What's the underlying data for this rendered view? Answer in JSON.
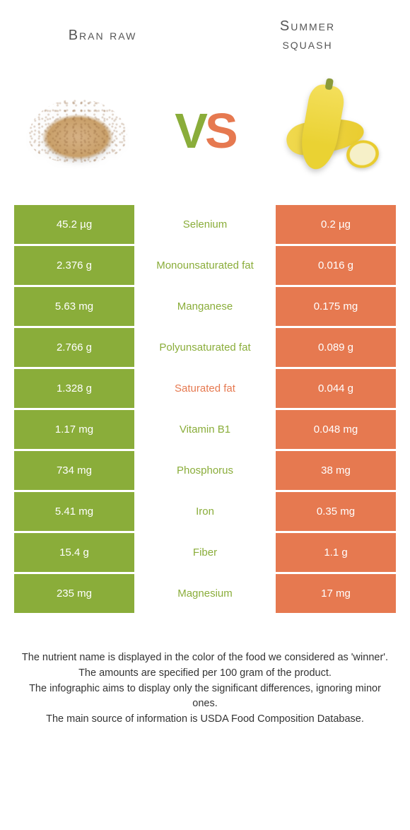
{
  "colors": {
    "left": "#8aad3a",
    "right": "#e67950",
    "vs_v": "#8aad3a",
    "vs_s": "#e67950",
    "background": "#ffffff"
  },
  "header": {
    "left_title": "Bran raw",
    "right_title_line1": "Summer",
    "right_title_line2": "squash"
  },
  "vs": {
    "v": "V",
    "s": "S"
  },
  "rows": [
    {
      "left": "45.2 µg",
      "name": "Selenium",
      "right": "0.2 µg",
      "winner": "left"
    },
    {
      "left": "2.376 g",
      "name": "Monounsaturated fat",
      "right": "0.016 g",
      "winner": "left"
    },
    {
      "left": "5.63 mg",
      "name": "Manganese",
      "right": "0.175 mg",
      "winner": "left"
    },
    {
      "left": "2.766 g",
      "name": "Polyunsaturated fat",
      "right": "0.089 g",
      "winner": "left"
    },
    {
      "left": "1.328 g",
      "name": "Saturated fat",
      "right": "0.044 g",
      "winner": "right"
    },
    {
      "left": "1.17 mg",
      "name": "Vitamin B1",
      "right": "0.048 mg",
      "winner": "left"
    },
    {
      "left": "734 mg",
      "name": "Phosphorus",
      "right": "38 mg",
      "winner": "left"
    },
    {
      "left": "5.41 mg",
      "name": "Iron",
      "right": "0.35 mg",
      "winner": "left"
    },
    {
      "left": "15.4 g",
      "name": "Fiber",
      "right": "1.1 g",
      "winner": "left"
    },
    {
      "left": "235 mg",
      "name": "Magnesium",
      "right": "17 mg",
      "winner": "left"
    }
  ],
  "footer": {
    "line1": "The nutrient name is displayed in the color of the food we considered as 'winner'.",
    "line2": "The amounts are specified per 100 gram of the product.",
    "line3": "The infographic aims to display only the significant differences, ignoring minor ones.",
    "line4": "The main source of information is USDA Food Composition Database."
  }
}
